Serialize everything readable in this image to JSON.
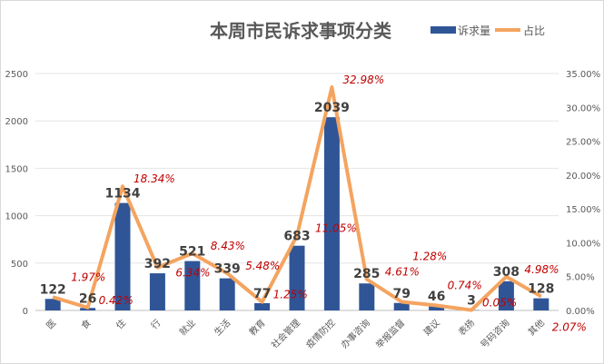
{
  "chart_data": {
    "type": "bar+line",
    "title": "本周市民诉求事项分类",
    "categories": [
      "医",
      "食",
      "住",
      "行",
      "就业",
      "生活",
      "教育",
      "社会管理",
      "疫情防控",
      "办事咨询",
      "举报监督",
      "建议",
      "表扬",
      "号码咨询",
      "其他"
    ],
    "series": [
      {
        "name": "诉求量",
        "type": "bar",
        "axis": "left",
        "color": "#2f5597",
        "values": [
          122,
          26,
          1134,
          392,
          521,
          339,
          77,
          683,
          2039,
          285,
          79,
          46,
          3,
          308,
          128
        ]
      },
      {
        "name": "占比",
        "type": "line",
        "axis": "right",
        "color": "#f4a460",
        "values": [
          1.97,
          0.42,
          18.34,
          6.34,
          8.43,
          5.48,
          1.25,
          11.05,
          32.98,
          4.61,
          1.28,
          0.74,
          0.05,
          4.98,
          2.07
        ]
      }
    ],
    "pct_labels": [
      "1.97%",
      "0.42%",
      "18.34%",
      "6.34%",
      "8.43%",
      "5.48%",
      "1.25%",
      "11.05%",
      "32.98%",
      "4.61%",
      "1.28%",
      "0.74%",
      "0.05%",
      "4.98%",
      "2.07%"
    ],
    "ylim_left": [
      0,
      2500
    ],
    "yticks_left": [
      "0",
      "500",
      "1000",
      "1500",
      "2000",
      "2500"
    ],
    "ylim_right": [
      0,
      35
    ],
    "yticks_right": [
      "0.00%",
      "5.00%",
      "10.00%",
      "15.00%",
      "20.00%",
      "25.00%",
      "30.00%",
      "35.00%"
    ],
    "legend_position": "top-right",
    "grid": true
  }
}
